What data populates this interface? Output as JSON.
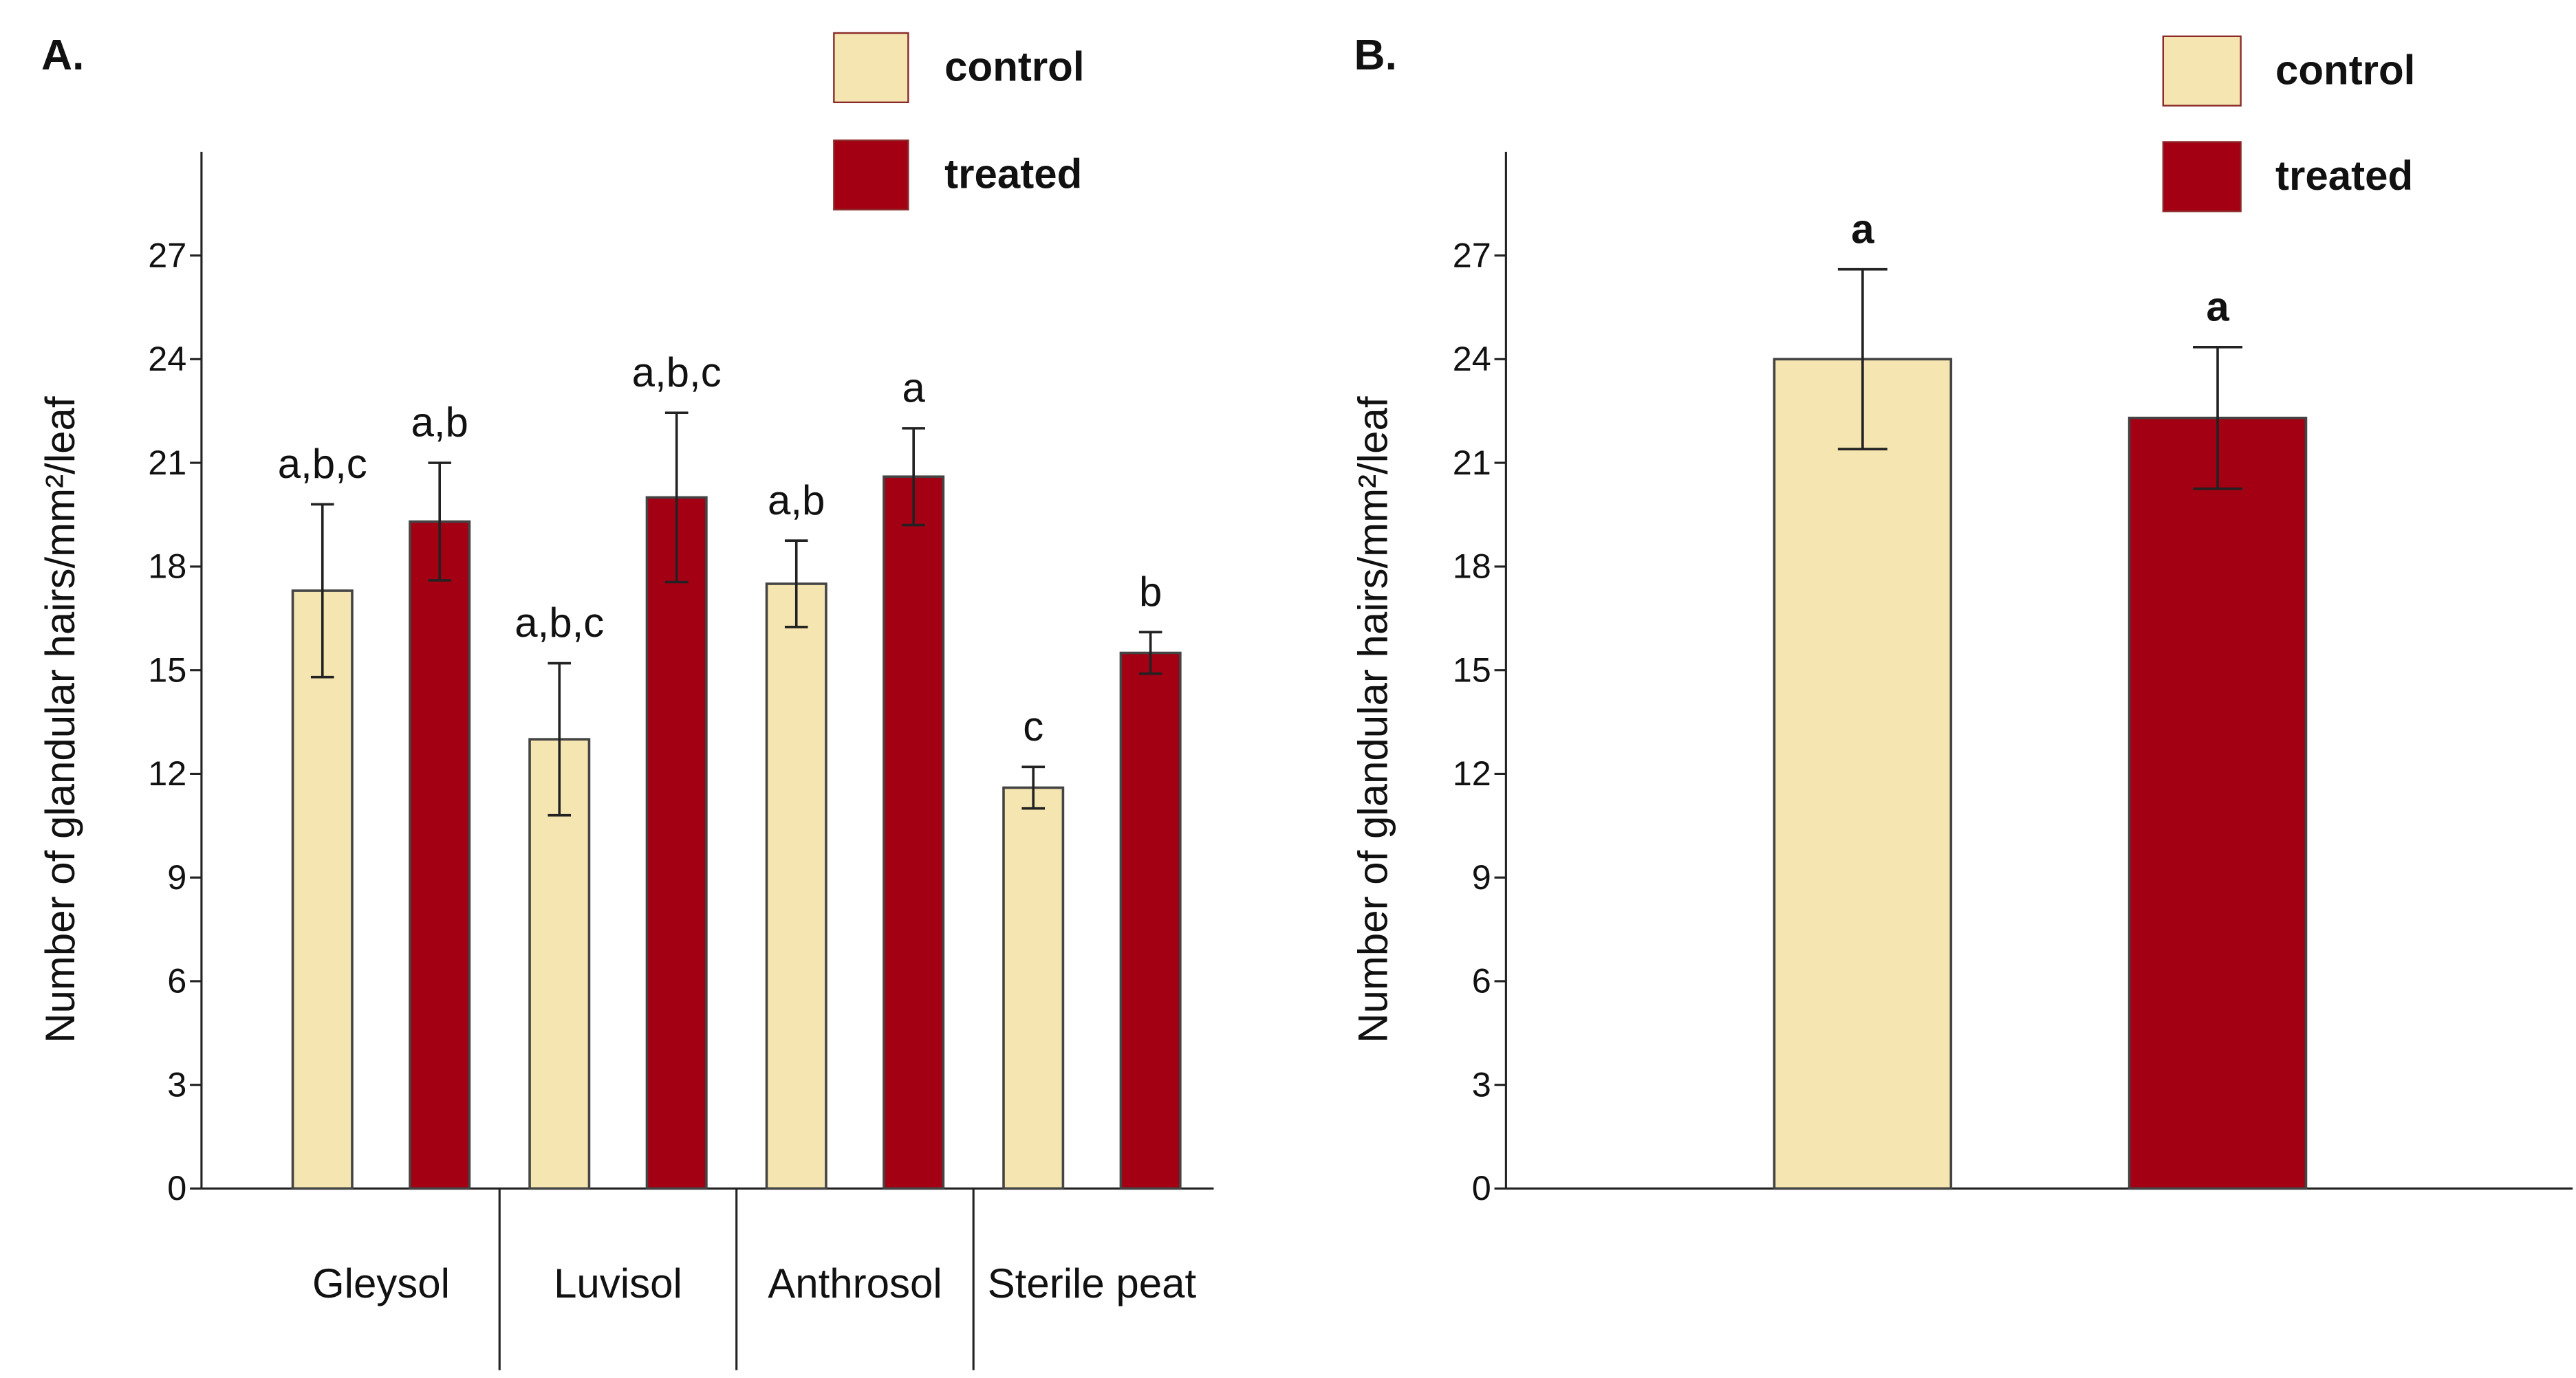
{
  "chart_data": [
    {
      "type": "bar",
      "panel": "A.",
      "ylabel": "Number of glandular hairs/mm²/leaf",
      "categories": [
        "Gleysol",
        "Luvisol",
        "Anthrosol",
        "Sterile peat"
      ],
      "series": [
        {
          "name": "control",
          "color": "#f5e6b1",
          "values": [
            17.3,
            13.0,
            17.5,
            11.6
          ],
          "errors": [
            2.5,
            2.2,
            1.25,
            0.6
          ],
          "labels": [
            "a,b,c",
            "a,b,c",
            "a,b",
            "c"
          ]
        },
        {
          "name": "treated",
          "color": "#a30014",
          "values": [
            19.3,
            20.0,
            20.6,
            15.5
          ],
          "errors": [
            1.7,
            2.45,
            1.4,
            0.6
          ],
          "labels": [
            "a,b",
            "a,b,c",
            "a",
            "b"
          ]
        }
      ],
      "ylim": [
        0,
        30
      ],
      "yticks": [
        0,
        3,
        6,
        9,
        12,
        15,
        18,
        21,
        24,
        27
      ]
    },
    {
      "type": "bar",
      "panel": "B.",
      "ylabel": "Number of glandular hairs/mm²/leaf",
      "series": [
        {
          "name": "control",
          "color": "#f5e6b1",
          "values": [
            24.0
          ],
          "errors": [
            2.6
          ],
          "labels": [
            "a"
          ]
        },
        {
          "name": "treated",
          "color": "#a30014",
          "values": [
            22.3
          ],
          "errors": [
            2.05
          ],
          "labels": [
            "a"
          ]
        }
      ],
      "ylim": [
        0,
        30
      ],
      "yticks": [
        0,
        3,
        6,
        9,
        12,
        15,
        18,
        21,
        24,
        27
      ]
    }
  ]
}
